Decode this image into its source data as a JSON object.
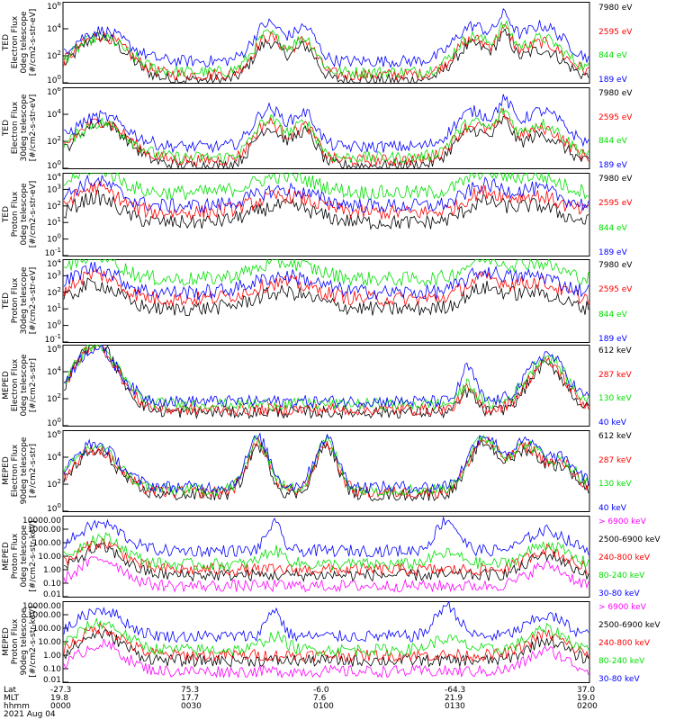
{
  "colors": {
    "black": "#000000",
    "red": "#ff0000",
    "green": "#00e000",
    "blue": "#0000ff",
    "magenta": "#ff00ff"
  },
  "chart_data": [
    {
      "type": "line",
      "ylabel_lines": [
        "TED",
        "Electron Flux",
        "0deg telescope",
        "[#/cm2-s-str-eV]"
      ],
      "yscale": "log",
      "ylim": [
        1,
        1000000
      ],
      "yticks": [
        "10^0",
        "10^2",
        "10^4",
        "10^6"
      ],
      "series": [
        {
          "name": "7980 eV",
          "color": "black",
          "base": "low"
        },
        {
          "name": "2595 eV",
          "color": "red",
          "base": "mid"
        },
        {
          "name": "844 eV",
          "color": "green",
          "base": "mid"
        },
        {
          "name": "189 eV",
          "color": "blue",
          "base": "high"
        }
      ],
      "profile": "ted_e"
    },
    {
      "type": "line",
      "ylabel_lines": [
        "TED",
        "Electron Flux",
        "30deg telescope",
        "[#/cm2-s-str-eV]"
      ],
      "yscale": "log",
      "ylim": [
        1,
        1000000
      ],
      "yticks": [
        "10^0",
        "10^2",
        "10^4",
        "10^6"
      ],
      "series": [
        {
          "name": "7980 eV",
          "color": "black"
        },
        {
          "name": "2595 eV",
          "color": "red"
        },
        {
          "name": "844 eV",
          "color": "green"
        },
        {
          "name": "189 eV",
          "color": "blue"
        }
      ],
      "profile": "ted_e"
    },
    {
      "type": "line",
      "ylabel_lines": [
        "TED",
        "Proton Flux",
        "0deg telescope",
        "[#/cm2-s-str-eV]"
      ],
      "yscale": "log",
      "ylim": [
        0.1,
        10000
      ],
      "yticks": [
        "10^-1",
        "10^0",
        "10^1",
        "10^2",
        "10^3",
        "10^4"
      ],
      "series": [
        {
          "name": "7980 eV",
          "color": "black"
        },
        {
          "name": "2595 eV",
          "color": "red"
        },
        {
          "name": "844 eV",
          "color": "green"
        },
        {
          "name": "189 eV",
          "color": "blue"
        }
      ],
      "profile": "ted_p"
    },
    {
      "type": "line",
      "ylabel_lines": [
        "TED",
        "Proton Flux",
        "30deg telescope",
        "[#/cm2-s-str-eV]"
      ],
      "yscale": "log",
      "ylim": [
        0.1,
        10000
      ],
      "yticks": [
        "10^-1",
        "10^0",
        "10^1",
        "10^2",
        "10^3",
        "10^4"
      ],
      "series": [
        {
          "name": "7980 eV",
          "color": "black"
        },
        {
          "name": "2595 eV",
          "color": "red"
        },
        {
          "name": "844 eV",
          "color": "green"
        },
        {
          "name": "189 eV",
          "color": "blue"
        }
      ],
      "profile": "ted_p"
    },
    {
      "type": "line",
      "ylabel_lines": [
        "MEPED",
        "Electron Flux",
        "0deg telescope",
        "[#/cm2-s-str]"
      ],
      "yscale": "log",
      "ylim": [
        1,
        1000000
      ],
      "yticks": [
        "10^0",
        "10^2",
        "10^4",
        "10^6"
      ],
      "series": [
        {
          "name": "612 keV",
          "color": "black"
        },
        {
          "name": "287 keV",
          "color": "red"
        },
        {
          "name": "130 keV",
          "color": "green"
        },
        {
          "name": "40 keV",
          "color": "blue"
        }
      ],
      "profile": "meped0"
    },
    {
      "type": "line",
      "ylabel_lines": [
        "MEPED",
        "Electron Flux",
        "90deg telescope",
        "[#/cm2-s-str]"
      ],
      "yscale": "log",
      "ylim": [
        1,
        1000000
      ],
      "yticks": [
        "10^0",
        "10^2",
        "10^4",
        "10^6"
      ],
      "series": [
        {
          "name": "612 keV",
          "color": "black"
        },
        {
          "name": "287 keV",
          "color": "red"
        },
        {
          "name": "130 keV",
          "color": "green"
        },
        {
          "name": "40 keV",
          "color": "blue"
        }
      ],
      "profile": "meped90"
    },
    {
      "type": "line",
      "ylabel_lines": [
        "MEPED",
        "Proton Flux",
        "0deg telescope",
        "[#/cm2-s-str-keV]"
      ],
      "yscale": "log",
      "ylim": [
        0.01,
        10000
      ],
      "yticks": [
        "0.01",
        "0.10",
        "1.00",
        "10.00",
        "100.00",
        "1000.00",
        "10000.00"
      ],
      "series": [
        {
          "name": "> 6900 keV",
          "color": "magenta"
        },
        {
          "name": "2500-6900 keV",
          "color": "black"
        },
        {
          "name": "240-800 keV",
          "color": "red"
        },
        {
          "name": "80-240 keV",
          "color": "green"
        },
        {
          "name": "30-80 keV",
          "color": "blue"
        }
      ],
      "profile": "mepp0"
    },
    {
      "type": "line",
      "ylabel_lines": [
        "MEPED",
        "Proton Flux",
        "90deg telescope",
        "[#/cm2-s-str-keV]"
      ],
      "yscale": "log",
      "ylim": [
        0.01,
        10000
      ],
      "yticks": [
        "0.01",
        "0.10",
        "1.00",
        "10.00",
        "100.00",
        "1000.00",
        "10000.00"
      ],
      "series": [
        {
          "name": "> 6900 keV",
          "color": "magenta"
        },
        {
          "name": "2500-6900 keV",
          "color": "black"
        },
        {
          "name": "240-800 keV",
          "color": "red"
        },
        {
          "name": "80-240 keV",
          "color": "green"
        },
        {
          "name": "30-80 keV",
          "color": "blue"
        }
      ],
      "profile": "mepp90"
    }
  ],
  "xaxis": {
    "row_labels": [
      "Lat",
      "MLT",
      "hhmm"
    ],
    "columns": [
      {
        "lat": "-27.3",
        "mlt": "19.8",
        "hhmm": "0000"
      },
      {
        "lat": "75.3",
        "mlt": "17.7",
        "hhmm": "0030"
      },
      {
        "lat": "-6.0",
        "mlt": "7.6",
        "hhmm": "0100"
      },
      {
        "lat": "-64.3",
        "mlt": "21.9",
        "hhmm": "0130"
      },
      {
        "lat": "37.0",
        "mlt": "19.0",
        "hhmm": "0200"
      }
    ],
    "date": "2021 Aug 04"
  }
}
